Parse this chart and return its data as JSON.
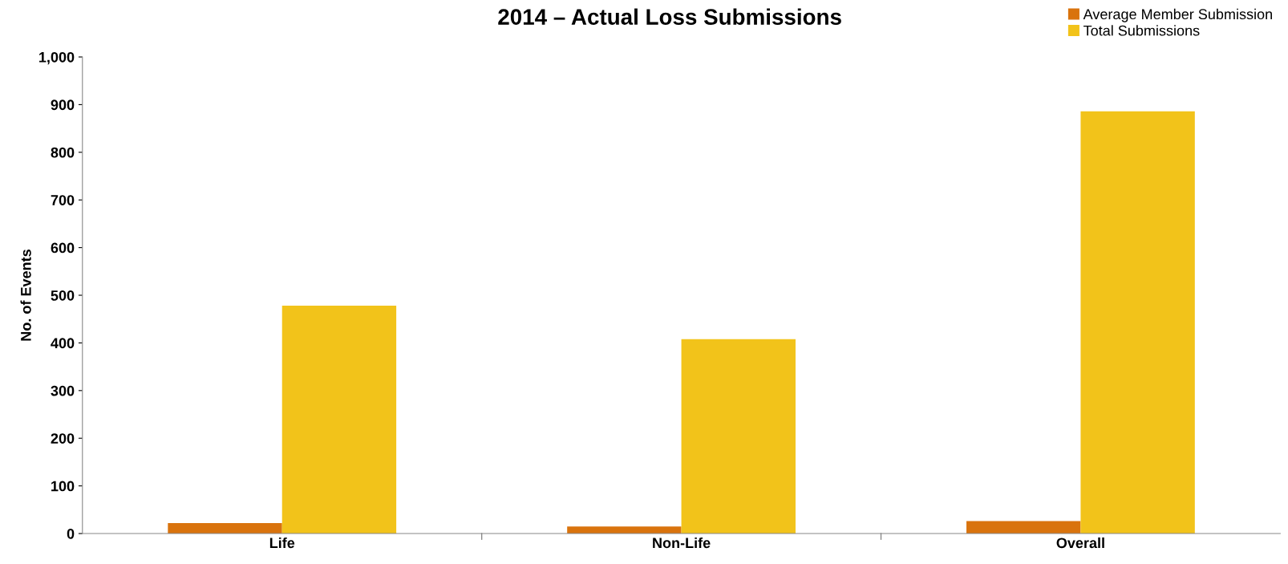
{
  "chart_data": {
    "type": "bar",
    "title": "2014 – Actual Loss Submissions",
    "ylabel": "No. of Events",
    "categories": [
      "Life",
      "Non-Life",
      "Overall"
    ],
    "series": [
      {
        "name": "Average Member Submission",
        "color": "#d9730d",
        "values": [
          22,
          15,
          26
        ]
      },
      {
        "name": "Total Submissions",
        "color": "#f2c31a",
        "values": [
          478,
          408,
          886
        ]
      }
    ],
    "ylim": [
      0,
      1000
    ],
    "yticks": [
      0,
      100,
      200,
      300,
      400,
      500,
      600,
      700,
      800,
      900,
      {
        "value": 1000,
        "label": "1,000"
      }
    ],
    "grid": false,
    "legend": "top right"
  }
}
